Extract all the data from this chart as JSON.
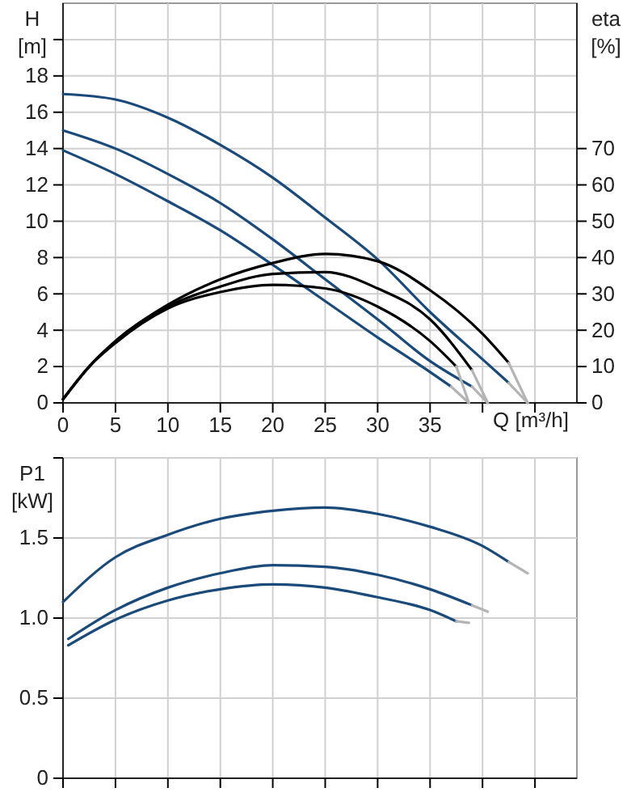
{
  "chart_data": [
    {
      "type": "line",
      "xlabel": "Q [m³/h]",
      "ylabel": "H [m]",
      "y2label": "eta [%]",
      "xlim": [
        0,
        49
      ],
      "xticks": [
        0,
        5,
        10,
        15,
        20,
        25,
        30,
        35,
        {
          "value": 40,
          "label": null
        },
        {
          "value": 45,
          "label": null
        }
      ],
      "ylim": [
        0,
        22
      ],
      "yticks": [
        0,
        2,
        4,
        6,
        8,
        10,
        12,
        14,
        16,
        18,
        {
          "value": 20,
          "label": null
        }
      ],
      "y2lim": [
        0,
        110
      ],
      "y2ticks": [
        0,
        10,
        20,
        30,
        40,
        50,
        60,
        70
      ],
      "grid": true,
      "series": [
        {
          "color": "#1a4a7a",
          "x": [
            0,
            5,
            10,
            15,
            20,
            25,
            30,
            35,
            40,
            42.5
          ],
          "values": [
            17.0,
            16.7,
            15.7,
            14.2,
            12.4,
            10.2,
            7.9,
            5.0,
            2.4,
            1.1
          ]
        },
        {
          "color": "#1a4a7a",
          "x": [
            0,
            5,
            10,
            15,
            20,
            25,
            30,
            35,
            39
          ],
          "values": [
            15.0,
            14.0,
            12.6,
            11.0,
            9.0,
            6.8,
            4.6,
            2.3,
            0.9
          ]
        },
        {
          "color": "#1a4a7a",
          "x": [
            0,
            5,
            10,
            15,
            20,
            25,
            30,
            35,
            37
          ],
          "values": [
            13.9,
            12.6,
            11.1,
            9.5,
            7.6,
            5.6,
            3.6,
            1.7,
            0.9
          ]
        },
        {
          "color": "#b4b4b4",
          "x": [
            42.5,
            44.3
          ],
          "values": [
            1.1,
            0
          ]
        },
        {
          "color": "#b4b4b4",
          "x": [
            39,
            40.5
          ],
          "values": [
            0.9,
            0
          ]
        },
        {
          "color": "#b4b4b4",
          "x": [
            37,
            38.7
          ],
          "values": [
            0.9,
            0
          ]
        },
        {
          "color": "#000000",
          "axis": "y2",
          "x": [
            0,
            2.5,
            5,
            10,
            15,
            20,
            25,
            30,
            35,
            40,
            42.5
          ],
          "values": [
            1,
            10,
            17,
            27,
            34,
            38.5,
            41,
            39,
            31,
            19,
            11
          ]
        },
        {
          "color": "#000000",
          "axis": "y2",
          "x": [
            0,
            2.5,
            5,
            10,
            15,
            20,
            25,
            30,
            35,
            39
          ],
          "values": [
            1,
            10,
            17,
            26.5,
            32,
            35.5,
            36,
            31.5,
            23,
            9
          ]
        },
        {
          "color": "#000000",
          "axis": "y2",
          "x": [
            0,
            2.5,
            5,
            10,
            15,
            20,
            25,
            30,
            35,
            37.5
          ],
          "values": [
            1,
            10,
            16.5,
            26,
            30.5,
            32.5,
            31.5,
            26.5,
            17,
            10
          ]
        },
        {
          "color": "#b4b4b4",
          "axis": "y2",
          "x": [
            42.5,
            44.3
          ],
          "values": [
            11,
            0
          ]
        },
        {
          "color": "#b4b4b4",
          "axis": "y2",
          "x": [
            39,
            40.5
          ],
          "values": [
            9,
            0
          ]
        },
        {
          "color": "#b4b4b4",
          "axis": "y2",
          "x": [
            37.5,
            38.7
          ],
          "values": [
            10,
            0
          ]
        }
      ]
    },
    {
      "type": "line",
      "ylabel": "P1 [kW]",
      "xlim": [
        0,
        49
      ],
      "xticks": [
        0,
        5,
        10,
        15,
        20,
        25,
        30,
        35,
        40,
        45
      ],
      "ylim": [
        0,
        2
      ],
      "yticks": [
        0,
        0.5,
        "1.0",
        1.5,
        {
          "value": 2,
          "label": null
        }
      ],
      "grid": true,
      "tick_labels": "y",
      "series": [
        {
          "color": "#1a4a7a",
          "x": [
            0,
            5,
            10,
            15,
            20,
            25,
            30,
            35,
            40,
            42.5
          ],
          "values": [
            1.1,
            1.38,
            1.52,
            1.62,
            1.67,
            1.69,
            1.65,
            1.57,
            1.45,
            1.35
          ]
        },
        {
          "color": "#1a4a7a",
          "x": [
            0.5,
            5,
            10,
            15,
            20,
            25,
            30,
            35,
            39
          ],
          "values": [
            0.87,
            1.05,
            1.19,
            1.28,
            1.33,
            1.32,
            1.27,
            1.18,
            1.08
          ]
        },
        {
          "color": "#1a4a7a",
          "x": [
            0.5,
            5,
            10,
            15,
            20,
            25,
            30,
            35,
            37.5
          ],
          "values": [
            0.83,
            0.99,
            1.11,
            1.18,
            1.21,
            1.19,
            1.13,
            1.05,
            0.98
          ]
        },
        {
          "color": "#b4b4b4",
          "x": [
            42.5,
            44.3
          ],
          "values": [
            1.35,
            1.28
          ]
        },
        {
          "color": "#b4b4b4",
          "x": [
            39,
            40.5
          ],
          "values": [
            1.08,
            1.04
          ]
        },
        {
          "color": "#b4b4b4",
          "x": [
            37.5,
            38.7
          ],
          "values": [
            0.98,
            0.97
          ]
        }
      ]
    }
  ]
}
